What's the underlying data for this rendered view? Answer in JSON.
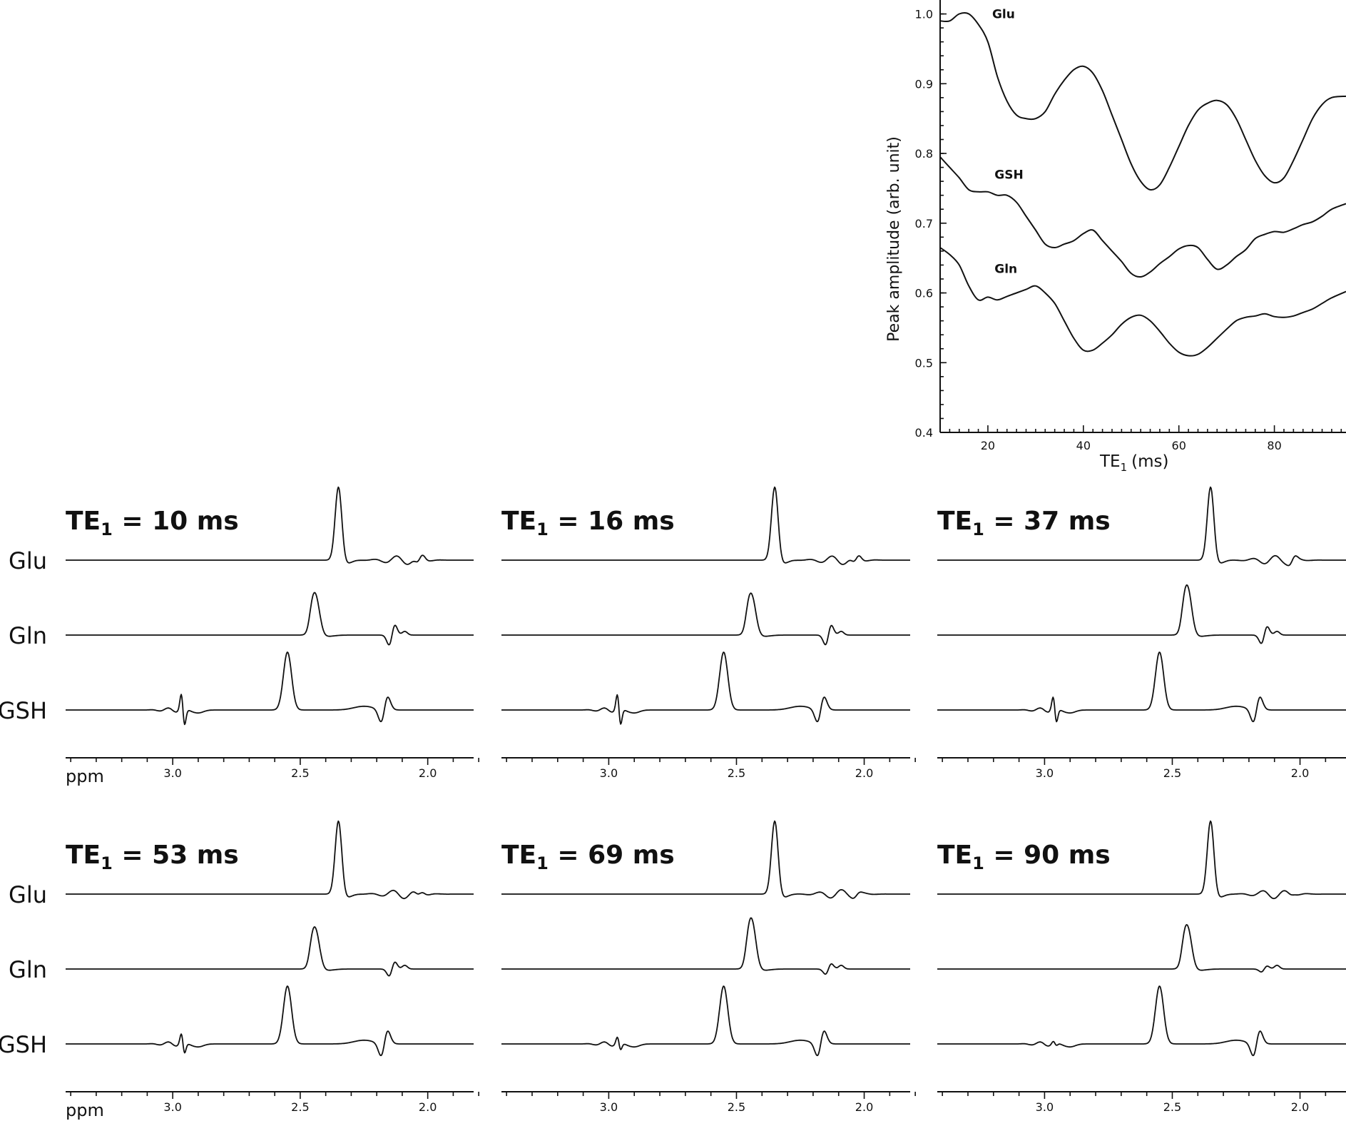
{
  "chart_data": [
    {
      "type": "line",
      "ylabel": "Peak amplitude (arb. unit)",
      "xlabel_main": "TE",
      "xlabel_sub": "1",
      "xlabel_unit": "(ms)",
      "xlim": [
        10,
        95
      ],
      "ylim": [
        0.4,
        1.02
      ],
      "xticks": [
        20,
        40,
        60,
        80
      ],
      "yticks": [
        0.4,
        0.5,
        0.6,
        0.7,
        0.8,
        0.9,
        1.0
      ],
      "ytick_labels": [
        "0.4",
        "0.5",
        "0.6",
        "0.7",
        "0.8",
        "0.9",
        "1.0"
      ],
      "series": [
        {
          "name": "Glu",
          "x": [
            10,
            12,
            14,
            16,
            18,
            20,
            22,
            24,
            26,
            28,
            30,
            32,
            34,
            36,
            38,
            40,
            42,
            44,
            46,
            48,
            50,
            52,
            54,
            56,
            58,
            60,
            62,
            64,
            66,
            68,
            70,
            72,
            74,
            76,
            78,
            80,
            82,
            84,
            86,
            88,
            90,
            92,
            95
          ],
          "values": [
            0.99,
            0.99,
            1.0,
            1.0,
            0.985,
            0.96,
            0.91,
            0.875,
            0.855,
            0.85,
            0.85,
            0.86,
            0.885,
            0.905,
            0.92,
            0.925,
            0.915,
            0.89,
            0.855,
            0.82,
            0.785,
            0.76,
            0.748,
            0.755,
            0.78,
            0.81,
            0.84,
            0.862,
            0.872,
            0.876,
            0.87,
            0.85,
            0.82,
            0.79,
            0.768,
            0.758,
            0.765,
            0.79,
            0.82,
            0.85,
            0.87,
            0.88,
            0.882
          ]
        },
        {
          "name": "GSH",
          "x": [
            10,
            12,
            14,
            16,
            18,
            20,
            22,
            24,
            26,
            28,
            30,
            32,
            34,
            36,
            38,
            40,
            42,
            44,
            46,
            48,
            50,
            52,
            54,
            56,
            58,
            60,
            62,
            64,
            66,
            68,
            70,
            72,
            74,
            76,
            78,
            80,
            82,
            84,
            86,
            88,
            90,
            92,
            95
          ],
          "values": [
            0.795,
            0.78,
            0.765,
            0.748,
            0.745,
            0.745,
            0.74,
            0.74,
            0.73,
            0.71,
            0.69,
            0.67,
            0.665,
            0.67,
            0.675,
            0.685,
            0.69,
            0.675,
            0.66,
            0.645,
            0.628,
            0.623,
            0.63,
            0.642,
            0.652,
            0.663,
            0.668,
            0.665,
            0.648,
            0.634,
            0.64,
            0.652,
            0.662,
            0.678,
            0.684,
            0.688,
            0.687,
            0.692,
            0.698,
            0.702,
            0.71,
            0.72,
            0.728
          ]
        },
        {
          "name": "Gln",
          "x": [
            10,
            12,
            14,
            16,
            18,
            20,
            22,
            24,
            26,
            28,
            30,
            32,
            34,
            36,
            38,
            40,
            42,
            44,
            46,
            48,
            50,
            52,
            54,
            56,
            58,
            60,
            62,
            64,
            66,
            68,
            70,
            72,
            74,
            76,
            78,
            80,
            82,
            84,
            86,
            88,
            90,
            92,
            95
          ],
          "values": [
            0.665,
            0.655,
            0.64,
            0.61,
            0.59,
            0.594,
            0.59,
            0.595,
            0.6,
            0.605,
            0.61,
            0.6,
            0.585,
            0.56,
            0.535,
            0.518,
            0.518,
            0.528,
            0.54,
            0.555,
            0.565,
            0.568,
            0.56,
            0.545,
            0.528,
            0.515,
            0.51,
            0.512,
            0.522,
            0.535,
            0.548,
            0.56,
            0.565,
            0.567,
            0.57,
            0.566,
            0.565,
            0.567,
            0.572,
            0.577,
            0.585,
            0.593,
            0.602
          ]
        }
      ]
    },
    {
      "type": "line",
      "panels": [
        {
          "te_main": "TE",
          "te_sub": "1",
          "te_rest": " = 10 ms"
        },
        {
          "te_main": "TE",
          "te_sub": "1",
          "te_rest": " = 16 ms"
        },
        {
          "te_main": "TE",
          "te_sub": "1",
          "te_rest": " = 37 ms"
        },
        {
          "te_main": "TE",
          "te_sub": "1",
          "te_rest": " = 53 ms"
        },
        {
          "te_main": "TE",
          "te_sub": "1",
          "te_rest": " = 69 ms"
        },
        {
          "te_main": "TE",
          "te_sub": "1",
          "te_rest": " = 90 ms"
        }
      ],
      "row_labels": [
        "Glu",
        "Gln",
        "GSH"
      ],
      "xunit_label": "ppm",
      "xlim": [
        3.42,
        1.82
      ],
      "xticks": [
        3.0,
        2.5,
        2.0
      ],
      "xtick_labels": [
        "3.0",
        "2.5",
        "2.0"
      ],
      "peaks": {
        "Glu": [
          {
            "ppm": 2.35,
            "amp": 1.0
          }
        ],
        "Gln": [
          {
            "ppm": 2.44,
            "amp": 0.65
          }
        ],
        "GSH": [
          {
            "ppm": 2.55,
            "amp": 0.8
          },
          {
            "ppm": 2.95,
            "amp": 0.3
          }
        ]
      }
    }
  ]
}
